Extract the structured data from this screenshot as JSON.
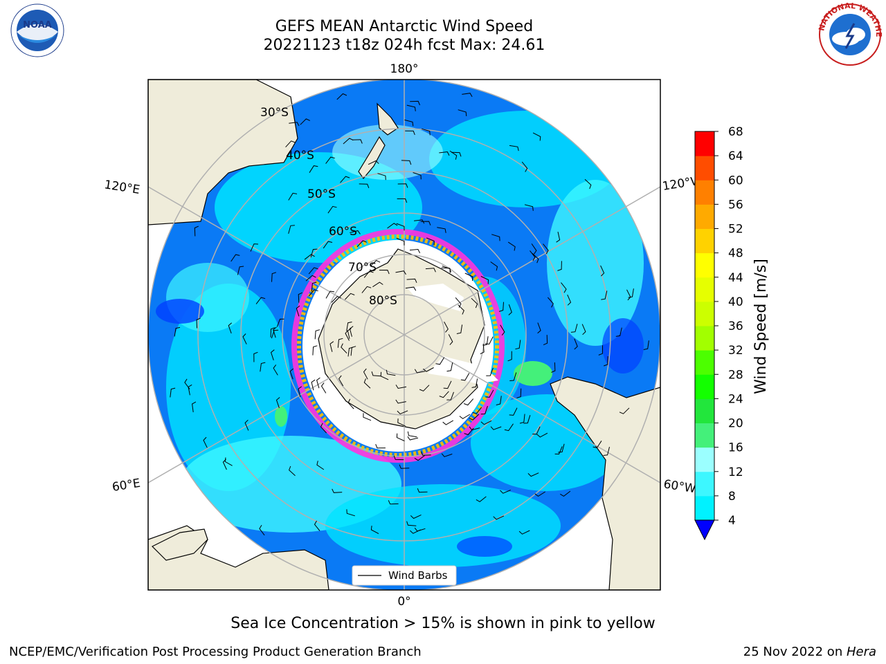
{
  "header": {
    "title_line1": "GEFS MEAN Antarctic Wind Speed",
    "title_line2": "20221123 t18z 024h fcst   Max: 24.61"
  },
  "map": {
    "projection": "south polar stereographic",
    "lon_labels": {
      "top": "180°",
      "bottom": "0°",
      "left_upper": "120°E",
      "left_lower": "60°E",
      "right_upper": "120°W",
      "right_lower": "60°W"
    },
    "lat_labels": [
      "30°S",
      "40°S",
      "50°S",
      "60°S",
      "70°S",
      "80°S"
    ],
    "legend_label": "Wind Barbs",
    "colors": {
      "land": "#efecda",
      "ocean_low": "#0a7af5",
      "ocean_mid": "#00e4ff",
      "ice_pink": "#ff33dd",
      "ice_yellow": "#ffc000"
    }
  },
  "colorbar": {
    "label": "Wind Speed [m/s]",
    "ticks": [
      "4",
      "8",
      "12",
      "16",
      "20",
      "24",
      "28",
      "32",
      "36",
      "40",
      "44",
      "48",
      "52",
      "56",
      "60",
      "64",
      "68"
    ],
    "colors": [
      "#0a7af5",
      "#00f2ff",
      "#3df7ff",
      "#9bffff",
      "#44f07a",
      "#22e63c",
      "#13ff00",
      "#4cff00",
      "#a2ff00",
      "#ccff00",
      "#e6ff00",
      "#ffff00",
      "#ffd200",
      "#ffaa00",
      "#ff8000",
      "#ff4d00",
      "#ff0000"
    ],
    "extend_color": "#0000ff"
  },
  "caption": "Sea Ice Concentration > 15% is shown in pink to yellow",
  "footer": {
    "left": "NCEP/EMC/Verification Post Processing Product Generation Branch",
    "right_date": "25 Nov 2022 on ",
    "right_host": "Hera"
  },
  "logos": {
    "noaa_text": "NOAA",
    "nws_text": "NATIONAL WEATHER SERVICE"
  }
}
